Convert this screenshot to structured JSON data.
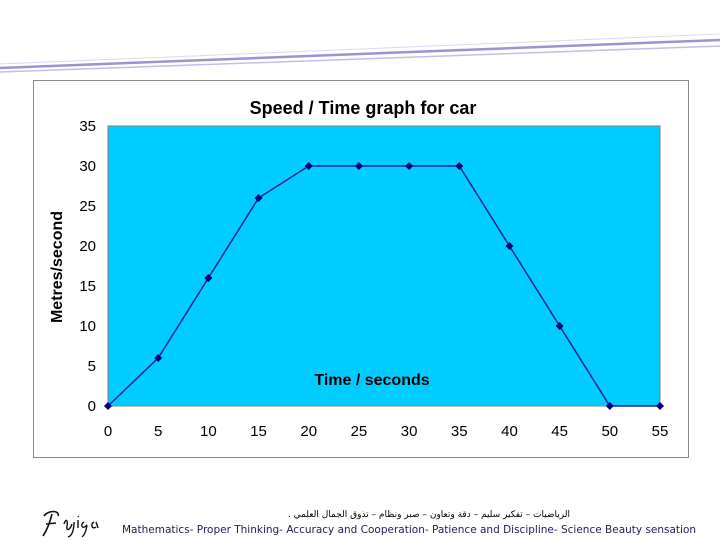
{
  "colors": {
    "plot_background": "#00ccff",
    "series_line": "#1f1fa0",
    "marker": "#000080",
    "header_band": "#8d7fc8"
  },
  "footer": {
    "arabic_line": "الرياضيات – تفكير سليم – دقة وتعاون – صبر ونظام – تذوق الجمال العلمي .",
    "english_line": "Mathematics- Proper Thinking- Accuracy and Cooperation- Patience and Discipline- Science Beauty sensation"
  },
  "chart_data": {
    "type": "line",
    "title": "Speed / Time graph for car",
    "xlabel": "Time / seconds",
    "ylabel": "Metres/second",
    "x": [
      0,
      5,
      10,
      15,
      20,
      25,
      30,
      35,
      40,
      45,
      50,
      55
    ],
    "series": [
      {
        "values": [
          0,
          6,
          16,
          26,
          30,
          30,
          30,
          30,
          20,
          10,
          0,
          0
        ]
      }
    ],
    "xlim": [
      0,
      55
    ],
    "ylim": [
      0,
      35
    ],
    "x_ticks": [
      0,
      5,
      10,
      15,
      20,
      25,
      30,
      35,
      40,
      45,
      50,
      55
    ],
    "y_ticks": [
      0,
      5,
      10,
      15,
      20,
      25,
      30,
      35
    ],
    "grid": false,
    "legend": "none"
  }
}
